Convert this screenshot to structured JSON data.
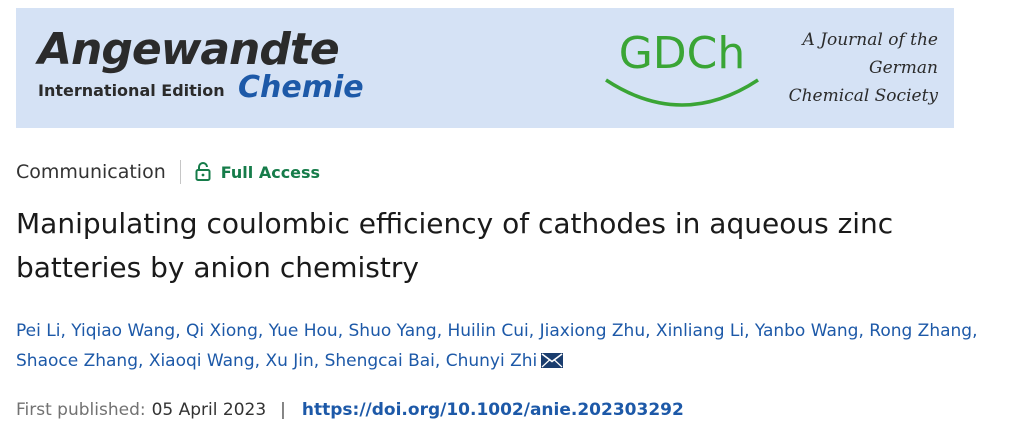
{
  "banner": {
    "journal_name_line1": "Angewandte",
    "journal_edition": "International Edition",
    "journal_name_line2": "Chemie",
    "society_logo_text": "GDCh",
    "society_lines": [
      "A Journal of the",
      "German",
      "Chemical Society"
    ],
    "colors": {
      "background": "#d5e2f5",
      "journal_blue": "#1d59a8",
      "gdch_green": "#3aa535"
    }
  },
  "meta": {
    "article_type": "Communication",
    "access_icon": "lock-open-icon",
    "access_label": "Full Access",
    "access_color": "#167c4a"
  },
  "title": "Manipulating coulombic efficiency of cathodes in aqueous zinc batteries by anion chemistry",
  "authors": [
    "Pei Li",
    "Yiqiao Wang",
    "Qi Xiong",
    "Yue Hou",
    "Shuo Yang",
    "Huilin Cui",
    "Jiaxiong Zhu",
    "Xinliang Li",
    "Yanbo Wang",
    "Rong Zhang",
    "Shaoce Zhang",
    "Xiaoqi Wang",
    "Xu Jin",
    "Shengcai Bai",
    "Chunyi Zhi"
  ],
  "corresponding_icon": "envelope-icon",
  "publication": {
    "label": "First published:",
    "date": "05 April 2023",
    "separator": "|",
    "doi": "https://doi.org/10.1002/anie.202303292"
  }
}
